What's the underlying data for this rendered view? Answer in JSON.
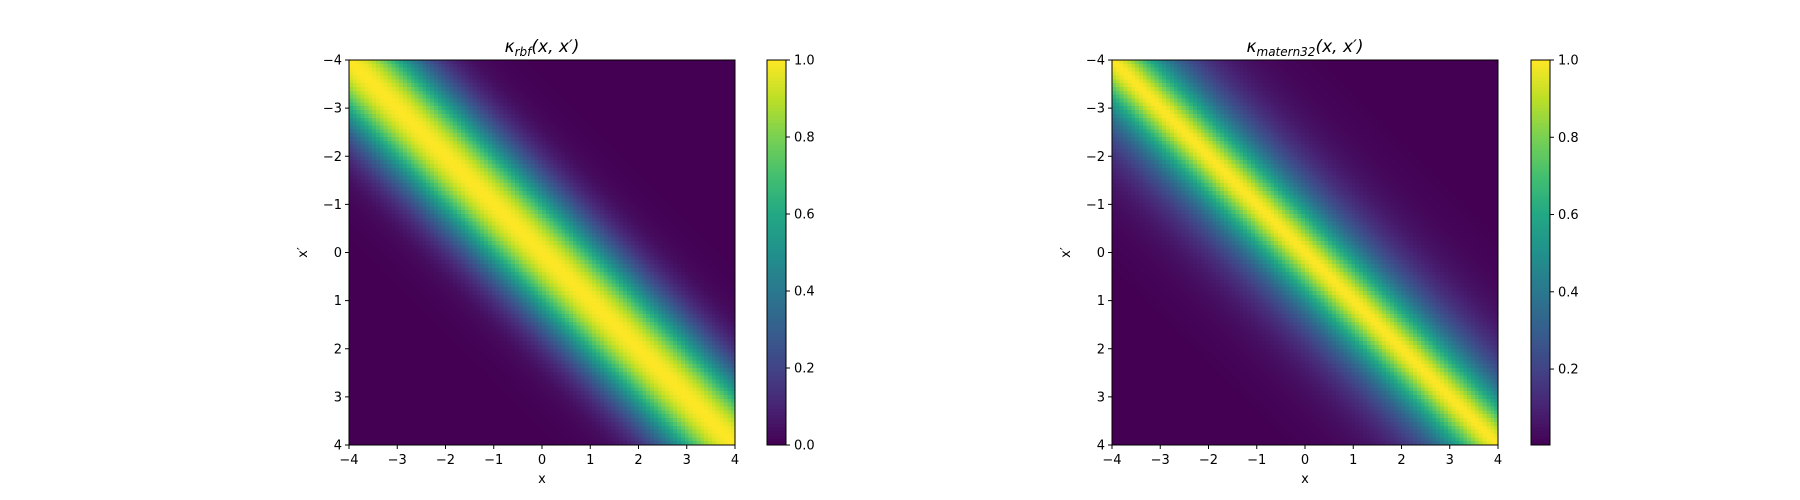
{
  "chart_data": [
    {
      "type": "heatmap",
      "kernel": "rbf",
      "title_symbol": "κ",
      "title_sub": "rbf",
      "title_args": "(x, x′)",
      "xlabel": "x",
      "ylabel": "x′",
      "xlim": [
        -4,
        4
      ],
      "ylim": [
        -4,
        4
      ],
      "y_inverted": true,
      "xticks": [
        -4,
        -3,
        -2,
        -1,
        0,
        1,
        2,
        3,
        4
      ],
      "yticks": [
        -4,
        -3,
        -2,
        -1,
        0,
        1,
        2,
        3,
        4
      ],
      "xtick_labels": [
        "−4",
        "−3",
        "−2",
        "−1",
        "0",
        "1",
        "2",
        "3",
        "4"
      ],
      "ytick_labels": [
        "−4",
        "−3",
        "−2",
        "−1",
        "0",
        "1",
        "2",
        "3",
        "4"
      ],
      "length_scale": 1.0,
      "grid_n": 100,
      "colormap": "viridis",
      "colorbar": {
        "vmin": 0.0,
        "vmax": 1.0,
        "ticks": [
          0.0,
          0.2,
          0.4,
          0.6,
          0.8,
          1.0
        ],
        "labels": [
          "0.0",
          "0.2",
          "0.4",
          "0.6",
          "0.8",
          "1.0"
        ]
      }
    },
    {
      "type": "heatmap",
      "kernel": "matern32",
      "title_symbol": "κ",
      "title_sub": "matern32",
      "title_args": "(x, x′)",
      "xlabel": "x",
      "ylabel": "x′",
      "xlim": [
        -4,
        4
      ],
      "ylim": [
        -4,
        4
      ],
      "y_inverted": true,
      "xticks": [
        -4,
        -3,
        -2,
        -1,
        0,
        1,
        2,
        3,
        4
      ],
      "yticks": [
        -4,
        -3,
        -2,
        -1,
        0,
        1,
        2,
        3,
        4
      ],
      "xtick_labels": [
        "−4",
        "−3",
        "−2",
        "−1",
        "0",
        "1",
        "2",
        "3",
        "4"
      ],
      "ytick_labels": [
        "−4",
        "−3",
        "−2",
        "−1",
        "0",
        "1",
        "2",
        "3",
        "4"
      ],
      "length_scale": 1.0,
      "grid_n": 100,
      "colormap": "viridis",
      "colorbar": {
        "vmin": 0.0034,
        "vmax": 1.0,
        "ticks": [
          0.2,
          0.4,
          0.6,
          0.8,
          1.0
        ],
        "labels": [
          "0.2",
          "0.4",
          "0.6",
          "0.8",
          "1.0"
        ]
      }
    }
  ]
}
